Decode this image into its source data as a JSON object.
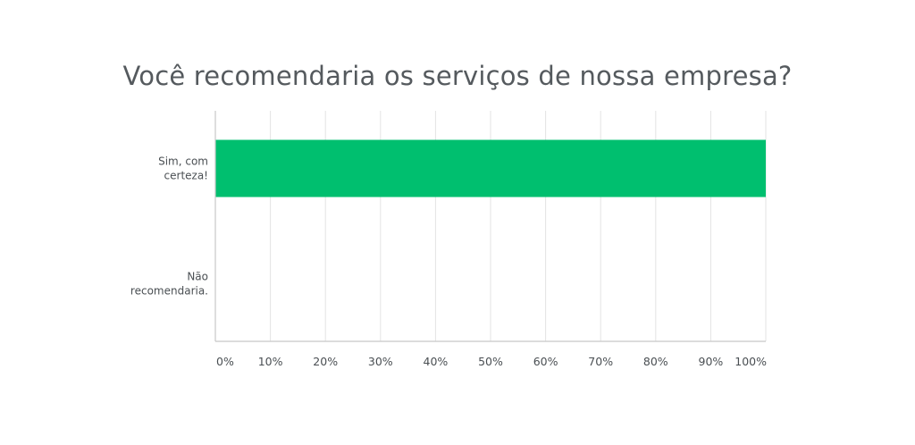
{
  "chart_data": {
    "type": "bar",
    "orientation": "horizontal",
    "title": "Você recomendaria os serviços de nossa empresa?",
    "categories": [
      [
        "Sim, com",
        "certeza!"
      ],
      [
        "Não",
        "recomendaria."
      ]
    ],
    "values": [
      100,
      0
    ],
    "xlim": [
      0,
      100
    ],
    "xticks": [
      "0%",
      "10%",
      "20%",
      "30%",
      "40%",
      "50%",
      "60%",
      "70%",
      "80%",
      "90%",
      "100%"
    ],
    "grid": true,
    "colors": {
      "bar": "#00bf6f",
      "grid": "#e3e3e3",
      "axis": "#c8c8c8"
    }
  }
}
